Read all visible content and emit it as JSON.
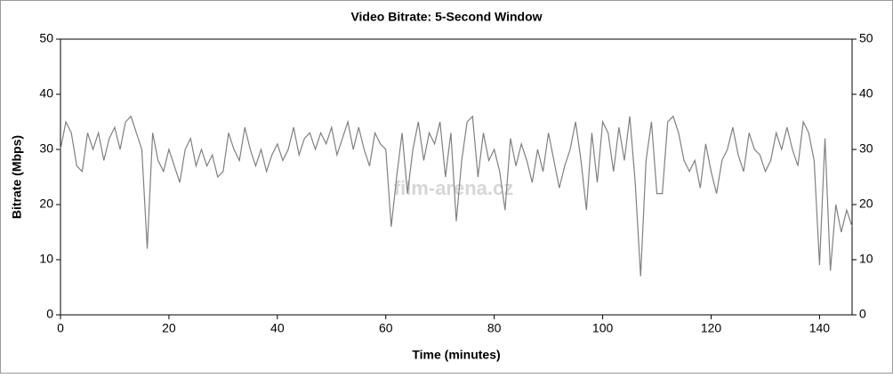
{
  "chart_data": {
    "type": "line",
    "title": "Video Bitrate: 5-Second Window",
    "x_label": "Time (minutes)",
    "y_label": "Bitrate (Mbps)",
    "watermark": "film-arena.cz",
    "x": [
      0,
      1,
      2,
      3,
      4,
      5,
      6,
      7,
      8,
      9,
      10,
      11,
      12,
      13,
      14,
      15,
      16,
      17,
      18,
      19,
      20,
      21,
      22,
      23,
      24,
      25,
      26,
      27,
      28,
      29,
      30,
      31,
      32,
      33,
      34,
      35,
      36,
      37,
      38,
      39,
      40,
      41,
      42,
      43,
      44,
      45,
      46,
      47,
      48,
      49,
      50,
      51,
      52,
      53,
      54,
      55,
      56,
      57,
      58,
      59,
      60,
      61,
      62,
      63,
      64,
      65,
      66,
      67,
      68,
      69,
      70,
      71,
      72,
      73,
      74,
      75,
      76,
      77,
      78,
      79,
      80,
      81,
      82,
      83,
      84,
      85,
      86,
      87,
      88,
      89,
      90,
      91,
      92,
      93,
      94,
      95,
      96,
      97,
      98,
      99,
      100,
      101,
      102,
      103,
      104,
      105,
      106,
      107,
      108,
      109,
      110,
      111,
      112,
      113,
      114,
      115,
      116,
      117,
      118,
      119,
      120,
      121,
      122,
      123,
      124,
      125,
      126,
      127,
      128,
      129,
      130,
      131,
      132,
      133,
      134,
      135,
      136,
      137,
      138,
      139,
      140,
      141,
      142,
      143,
      144,
      145,
      146
    ],
    "series": [
      {
        "name": "Bitrate",
        "color": "#808080",
        "values": [
          30,
          35,
          33,
          27,
          26,
          33,
          30,
          33,
          28,
          32,
          34,
          30,
          35,
          36,
          33,
          30,
          12,
          33,
          28,
          26,
          30,
          27,
          24,
          30,
          32,
          27,
          30,
          27,
          29,
          25,
          26,
          33,
          30,
          28,
          34,
          30,
          27,
          30,
          26,
          29,
          31,
          28,
          30,
          34,
          29,
          32,
          33,
          30,
          33,
          31,
          34,
          29,
          32,
          35,
          30,
          34,
          30,
          27,
          33,
          31,
          30,
          16,
          25,
          33,
          22,
          30,
          35,
          28,
          33,
          31,
          35,
          25,
          33,
          17,
          28,
          35,
          36,
          25,
          33,
          28,
          30,
          26,
          19,
          32,
          27,
          31,
          28,
          24,
          30,
          26,
          33,
          28,
          23,
          27,
          30,
          35,
          28,
          19,
          33,
          24,
          35,
          33,
          26,
          34,
          28,
          36,
          24,
          7,
          28,
          35,
          22,
          22,
          35,
          36,
          33,
          28,
          26,
          28,
          23,
          31,
          26,
          22,
          28,
          30,
          34,
          29,
          26,
          33,
          30,
          29,
          26,
          28,
          33,
          30,
          34,
          30,
          27,
          35,
          33,
          28,
          9,
          32,
          8,
          20,
          15,
          19,
          16
        ]
      }
    ],
    "xlim": [
      0,
      146
    ],
    "ylim": [
      0,
      50
    ],
    "xticks": [
      0,
      20,
      40,
      60,
      80,
      100,
      120,
      140
    ],
    "yticks": [
      0,
      10,
      20,
      30,
      40,
      50
    ]
  }
}
